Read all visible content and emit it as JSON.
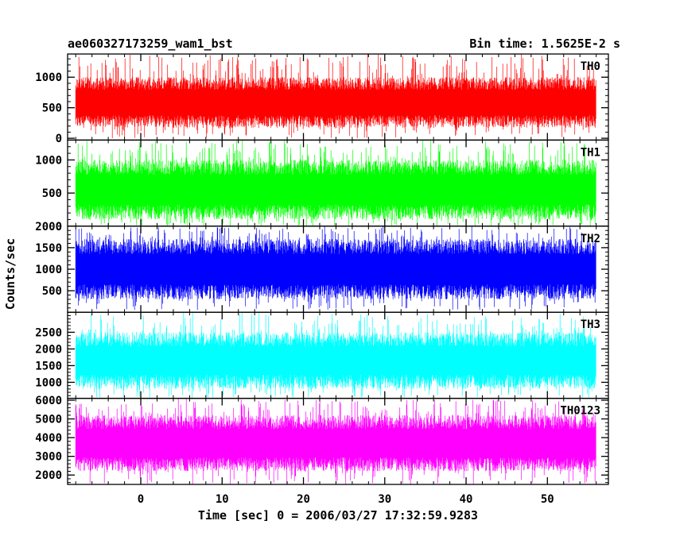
{
  "header": {
    "title": "ae060327173259_wam1_bst",
    "bin_time": "Bin time: 1.5625E-2 s"
  },
  "axes": {
    "xlabel": "Time [sec] 0 = 2006/03/27 17:32:59.9283",
    "ylabel": "Counts/sec"
  },
  "chart_data": {
    "type": "line",
    "title": "ae060327173259_wam1_bst",
    "xlabel": "Time [sec] 0 = 2006/03/27 17:32:59.9283",
    "ylabel": "Counts/sec",
    "xlim": [
      -9,
      57.5
    ],
    "x_ticks": [
      0,
      10,
      20,
      30,
      40,
      50
    ],
    "x_tick_labels": [
      "0",
      "10",
      "20",
      "30",
      "40",
      "50"
    ],
    "data_x_range": [
      -8,
      56
    ],
    "bin_time_s": 0.015625,
    "panels": [
      {
        "name": "TH0",
        "color": "#ff0000",
        "ylim": [
          -30,
          1380
        ],
        "y_ticks": [
          0,
          500,
          1000
        ],
        "y_tick_labels": [
          "0",
          "500",
          "1000"
        ],
        "base_min": 170,
        "base_max": 1000,
        "spike_max": 1380,
        "spike_min": 0
      },
      {
        "name": "TH1",
        "color": "#00ff00",
        "ylim": [
          0,
          1300
        ],
        "y_ticks": [
          0,
          500,
          1000
        ],
        "y_tick_labels": [
          "0",
          "500",
          "1000"
        ],
        "base_min": 100,
        "base_max": 1000,
        "spike_max": 1300,
        "spike_min": 0
      },
      {
        "name": "TH2",
        "color": "#0000ff",
        "ylim": [
          0,
          2000
        ],
        "y_ticks": [
          500,
          1000,
          1500,
          2000
        ],
        "y_tick_labels": [
          "500",
          "1000",
          "1500",
          "2000"
        ],
        "base_min": 300,
        "base_max": 1700,
        "spike_max": 2000,
        "spike_min": 50
      },
      {
        "name": "TH3",
        "color": "#00ffff",
        "ylim": [
          520,
          3100
        ],
        "y_ticks": [
          1000,
          1500,
          2000,
          2500
        ],
        "y_tick_labels": [
          "1000",
          "1500",
          "2000",
          "2500"
        ],
        "base_min": 800,
        "base_max": 2500,
        "spike_max": 3100,
        "spike_min": 520
      },
      {
        "name": "TH0123",
        "color": "#ff00ff",
        "ylim": [
          1500,
          6100
        ],
        "y_ticks": [
          2000,
          3000,
          4000,
          5000,
          6000
        ],
        "y_tick_labels": [
          "2000",
          "3000",
          "4000",
          "5000",
          "6000"
        ],
        "base_min": 2200,
        "base_max": 5200,
        "spike_max": 6100,
        "spike_min": 1500
      }
    ]
  }
}
